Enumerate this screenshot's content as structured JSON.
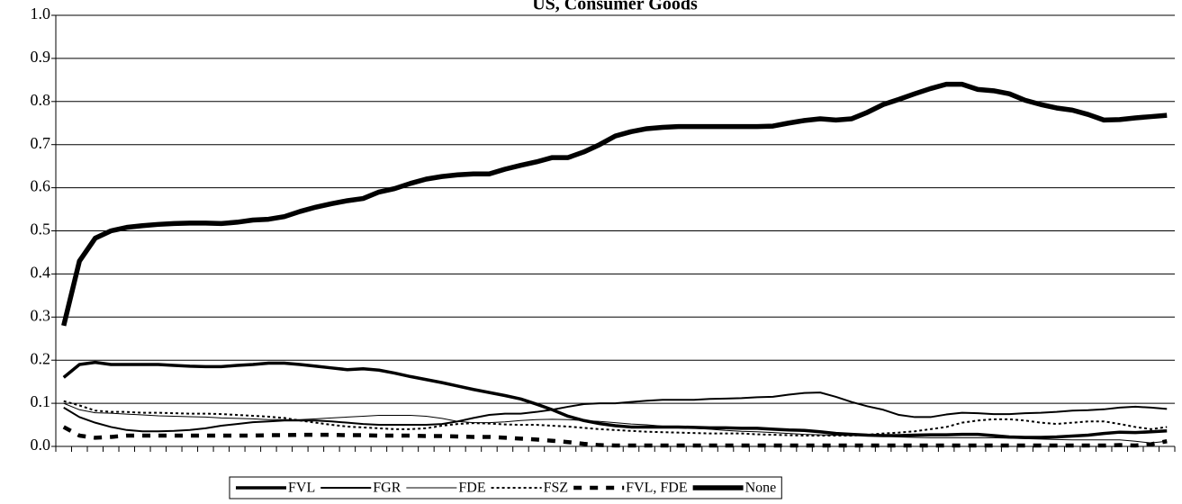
{
  "chart_data": {
    "type": "line",
    "title": "US, Consumer Goods",
    "categories": [
      null,
      null,
      null,
      null,
      null,
      null,
      null,
      null,
      null,
      null,
      null,
      null,
      null,
      null,
      null,
      null,
      null,
      null,
      null,
      null,
      null,
      null,
      null,
      null,
      null,
      null,
      null,
      null,
      null,
      null,
      null,
      null,
      null,
      null,
      null,
      null,
      null,
      null,
      null,
      null,
      null,
      null,
      null,
      null,
      null,
      null,
      null,
      null,
      null,
      null,
      null,
      null,
      null,
      null,
      null,
      null,
      null,
      null,
      null,
      null,
      null,
      null,
      null,
      null,
      null,
      null,
      null,
      null,
      null,
      null,
      null
    ],
    "ylim": [
      0,
      1
    ],
    "yticks": [
      {
        "value": 0,
        "label": "0.0"
      },
      0.1,
      0.2,
      0.3,
      0.4,
      0.5,
      0.6,
      0.7,
      0.8,
      0.9,
      {
        "value": 1,
        "label": "1.0"
      }
    ],
    "grid": true,
    "legend": "bottom",
    "series": [
      {
        "name": "FVL",
        "color": "#000000",
        "line_width": 3.5,
        "dash": "none",
        "values": [
          0.16,
          0.19,
          0.195,
          0.19,
          0.19,
          0.19,
          0.19,
          0.188,
          0.186,
          0.185,
          0.185,
          0.188,
          0.19,
          0.193,
          0.193,
          0.19,
          0.186,
          0.182,
          0.178,
          0.18,
          0.177,
          0.17,
          0.162,
          0.155,
          0.148,
          0.14,
          0.132,
          0.125,
          0.118,
          0.11,
          0.098,
          0.085,
          0.07,
          0.06,
          0.053,
          0.048,
          0.045,
          0.045,
          0.045,
          0.045,
          0.044,
          0.043,
          0.043,
          0.042,
          0.042,
          0.04,
          0.038,
          0.037,
          0.034,
          0.03,
          0.028,
          0.026,
          0.025,
          0.025,
          0.026,
          0.027,
          0.027,
          0.028,
          0.028,
          0.025,
          0.022,
          0.021,
          0.021,
          0.022,
          0.024,
          0.026,
          0.03,
          0.033,
          0.032,
          0.034,
          0.036
        ]
      },
      {
        "name": "FGR",
        "color": "#000000",
        "line_width": 2,
        "dash": "none",
        "values": [
          0.09,
          0.068,
          0.055,
          0.045,
          0.038,
          0.035,
          0.035,
          0.036,
          0.038,
          0.042,
          0.048,
          0.052,
          0.056,
          0.058,
          0.06,
          0.06,
          0.06,
          0.058,
          0.055,
          0.052,
          0.05,
          0.05,
          0.05,
          0.05,
          0.052,
          0.058,
          0.066,
          0.073,
          0.076,
          0.076,
          0.08,
          0.085,
          0.092,
          0.098,
          0.1,
          0.1,
          0.103,
          0.106,
          0.108,
          0.108,
          0.108,
          0.11,
          0.111,
          0.112,
          0.114,
          0.115,
          0.12,
          0.124,
          0.125,
          0.115,
          0.103,
          0.093,
          0.085,
          0.073,
          0.068,
          0.068,
          0.074,
          0.078,
          0.077,
          0.075,
          0.075,
          0.077,
          0.078,
          0.08,
          0.083,
          0.084,
          0.086,
          0.09,
          0.092,
          0.09,
          0.087
        ]
      },
      {
        "name": "FDE",
        "color": "#000000",
        "line_width": 1,
        "dash": "none",
        "values": [
          0.1,
          0.085,
          0.078,
          0.077,
          0.075,
          0.073,
          0.071,
          0.07,
          0.069,
          0.068,
          0.066,
          0.065,
          0.064,
          0.062,
          0.062,
          0.062,
          0.064,
          0.066,
          0.068,
          0.07,
          0.072,
          0.072,
          0.072,
          0.07,
          0.065,
          0.058,
          0.055,
          0.055,
          0.057,
          0.06,
          0.062,
          0.063,
          0.062,
          0.06,
          0.058,
          0.055,
          0.052,
          0.05,
          0.047,
          0.045,
          0.042,
          0.04,
          0.037,
          0.035,
          0.034,
          0.032,
          0.03,
          0.028,
          0.027,
          0.026,
          0.025,
          0.025,
          0.024,
          0.022,
          0.021,
          0.02,
          0.02,
          0.02,
          0.02,
          0.02,
          0.019,
          0.018,
          0.017,
          0.016,
          0.015,
          0.015,
          0.015,
          0.015,
          0.012,
          0.008,
          0.012
        ]
      },
      {
        "name": "FSZ",
        "color": "#000000",
        "line_width": 2,
        "dash": "3,3",
        "values": [
          0.105,
          0.095,
          0.083,
          0.08,
          0.08,
          0.078,
          0.078,
          0.077,
          0.076,
          0.076,
          0.075,
          0.073,
          0.071,
          0.069,
          0.066,
          0.06,
          0.055,
          0.05,
          0.046,
          0.044,
          0.042,
          0.04,
          0.04,
          0.042,
          0.048,
          0.052,
          0.054,
          0.053,
          0.051,
          0.05,
          0.05,
          0.048,
          0.046,
          0.043,
          0.04,
          0.038,
          0.036,
          0.034,
          0.033,
          0.032,
          0.031,
          0.03,
          0.03,
          0.03,
          0.028,
          0.027,
          0.026,
          0.025,
          0.025,
          0.025,
          0.025,
          0.027,
          0.03,
          0.032,
          0.035,
          0.04,
          0.045,
          0.055,
          0.06,
          0.063,
          0.063,
          0.06,
          0.055,
          0.052,
          0.055,
          0.058,
          0.058,
          0.052,
          0.045,
          0.04,
          0.045
        ]
      },
      {
        "name": "FVL, FDE",
        "color": "#000000",
        "line_width": 4.5,
        "dash": "9,9",
        "values": [
          0.045,
          0.025,
          0.02,
          0.022,
          0.025,
          0.025,
          0.025,
          0.025,
          0.025,
          0.025,
          0.025,
          0.025,
          0.025,
          0.026,
          0.026,
          0.027,
          0.027,
          0.027,
          0.026,
          0.026,
          0.025,
          0.025,
          0.025,
          0.024,
          0.024,
          0.023,
          0.022,
          0.022,
          0.02,
          0.018,
          0.016,
          0.013,
          0.01,
          0.006,
          0.003,
          0.002,
          0.002,
          0.002,
          0.002,
          0.002,
          0.002,
          0.002,
          0.002,
          0.002,
          0.002,
          0.002,
          0.002,
          0.002,
          0.002,
          0.002,
          0.002,
          0.002,
          0.002,
          0.002,
          0.002,
          0.002,
          0.002,
          0.002,
          0.002,
          0.002,
          0.002,
          0.002,
          0.002,
          0.002,
          0.002,
          0.002,
          0.002,
          0.003,
          0.002,
          0.005,
          0.012
        ]
      },
      {
        "name": "None",
        "color": "#000000",
        "line_width": 5.5,
        "dash": "none",
        "values": [
          0.28,
          0.43,
          0.483,
          0.5,
          0.508,
          0.512,
          0.515,
          0.517,
          0.518,
          0.518,
          0.517,
          0.52,
          0.525,
          0.527,
          0.533,
          0.545,
          0.555,
          0.563,
          0.57,
          0.575,
          0.59,
          0.598,
          0.61,
          0.62,
          0.626,
          0.63,
          0.632,
          0.632,
          0.643,
          0.652,
          0.66,
          0.67,
          0.67,
          0.683,
          0.7,
          0.72,
          0.73,
          0.737,
          0.74,
          0.742,
          0.742,
          0.742,
          0.742,
          0.742,
          0.742,
          0.743,
          0.75,
          0.756,
          0.76,
          0.757,
          0.76,
          0.775,
          0.793,
          0.805,
          0.818,
          0.83,
          0.84,
          0.84,
          0.828,
          0.825,
          0.818,
          0.803,
          0.793,
          0.785,
          0.78,
          0.77,
          0.757,
          0.758,
          0.762,
          0.765,
          0.768
        ]
      }
    ]
  }
}
